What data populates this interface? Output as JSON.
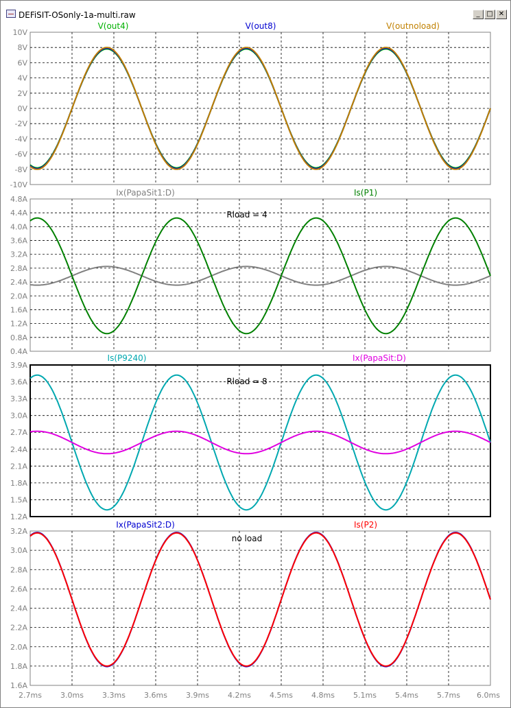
{
  "window": {
    "title": "DEFiSIT-OSonly-1a-multi.raw",
    "minimize_label": "_",
    "maximize_label": "□",
    "close_label": "✕"
  },
  "colors": {
    "green": "#008000",
    "blue": "#0000d0",
    "orange": "#c08000",
    "gray": "#707070",
    "cyan": "#00a8b0",
    "magenta": "#e000e0",
    "red": "#ff0000",
    "grid": "#000000"
  },
  "chart_data": [
    {
      "type": "line",
      "x_range": [
        2.7,
        6.0
      ],
      "xlim": [
        2.7,
        6.0
      ],
      "ylim": [
        -10,
        10
      ],
      "yticks": [
        "-10V",
        "-8V",
        "-6V",
        "-4V",
        "-2V",
        "0V",
        "2V",
        "4V",
        "6V",
        "8V",
        "10V"
      ],
      "ytick_values": [
        -10,
        -8,
        -6,
        -4,
        -2,
        0,
        2,
        4,
        6,
        8,
        10
      ],
      "annotation": "",
      "series": [
        {
          "name": "V(out4)",
          "color": "#00b000",
          "offset": 0,
          "amplitude": 7.8,
          "period": 1.0,
          "phase_peak": 3.25
        },
        {
          "name": "V(out8)",
          "color": "#0000d0",
          "offset": 0,
          "amplitude": 7.9,
          "period": 1.0,
          "phase_peak": 3.25
        },
        {
          "name": "V(outnoload)",
          "color": "#c08000",
          "offset": 0,
          "amplitude": 8.0,
          "period": 1.0,
          "phase_peak": 3.25
        }
      ]
    },
    {
      "type": "line",
      "x_range": [
        2.7,
        6.0
      ],
      "xlim": [
        2.7,
        6.0
      ],
      "ylim": [
        0.4,
        4.8
      ],
      "yticks": [
        "0.4A",
        "0.8A",
        "1.2A",
        "1.6A",
        "2.0A",
        "2.4A",
        "2.8A",
        "3.2A",
        "3.6A",
        "4.0A",
        "4.4A",
        "4.8A"
      ],
      "ytick_values": [
        0.4,
        0.8,
        1.2,
        1.6,
        2.0,
        2.4,
        2.8,
        3.2,
        3.6,
        4.0,
        4.4,
        4.8
      ],
      "annotation": "Rload = 4",
      "series": [
        {
          "name": "Ix(PapaSit1:D)",
          "color": "#808080",
          "offset": 2.58,
          "amplitude": 0.27,
          "period": 1.0,
          "phase_peak": 3.25
        },
        {
          "name": "Is(P1)",
          "color": "#008000",
          "offset": 2.58,
          "amplitude": 1.67,
          "period": 1.0,
          "phase_peak": 3.75
        }
      ]
    },
    {
      "type": "line",
      "x_range": [
        2.7,
        6.0
      ],
      "xlim": [
        2.7,
        6.0
      ],
      "ylim": [
        1.2,
        3.9
      ],
      "yticks": [
        "1.2A",
        "1.5A",
        "1.8A",
        "2.1A",
        "2.4A",
        "2.7A",
        "3.0A",
        "3.3A",
        "3.6A",
        "3.9A"
      ],
      "ytick_values": [
        1.2,
        1.5,
        1.8,
        2.1,
        2.4,
        2.7,
        3.0,
        3.3,
        3.6,
        3.9
      ],
      "annotation": "Rload = 8",
      "series": [
        {
          "name": "Is(P9240)",
          "color": "#00a8b0",
          "offset": 2.52,
          "amplitude": 1.2,
          "period": 1.0,
          "phase_peak": 3.75
        },
        {
          "name": "Ix(PapaSit:D)",
          "color": "#e000e0",
          "offset": 2.52,
          "amplitude": 0.2,
          "period": 1.0,
          "phase_peak": 3.75
        }
      ]
    },
    {
      "type": "line",
      "x_range": [
        2.7,
        6.0
      ],
      "xlim": [
        2.7,
        6.0
      ],
      "ylim": [
        1.6,
        3.2
      ],
      "yticks": [
        "1.6A",
        "1.8A",
        "2.0A",
        "2.2A",
        "2.4A",
        "2.6A",
        "2.8A",
        "3.0A",
        "3.2A"
      ],
      "ytick_values": [
        1.6,
        1.8,
        2.0,
        2.2,
        2.4,
        2.6,
        2.8,
        3.0,
        3.2
      ],
      "annotation": "no load",
      "xticks": [
        "2.7ms",
        "3.0ms",
        "3.3ms",
        "3.6ms",
        "3.9ms",
        "4.2ms",
        "4.5ms",
        "4.8ms",
        "5.1ms",
        "5.4ms",
        "5.7ms",
        "6.0ms"
      ],
      "xtick_values": [
        2.7,
        3.0,
        3.3,
        3.6,
        3.9,
        4.2,
        4.5,
        4.8,
        5.1,
        5.4,
        5.7,
        6.0
      ],
      "series": [
        {
          "name": "Ix(PapaSit2:D)",
          "color": "#0000d0",
          "offset": 2.49,
          "amplitude": 0.695,
          "period": 1.0,
          "phase_peak": 3.75
        },
        {
          "name": "Is(P2)",
          "color": "#ff0000",
          "offset": 2.49,
          "amplitude": 0.69,
          "period": 1.0,
          "phase_peak": 3.75
        }
      ]
    }
  ]
}
